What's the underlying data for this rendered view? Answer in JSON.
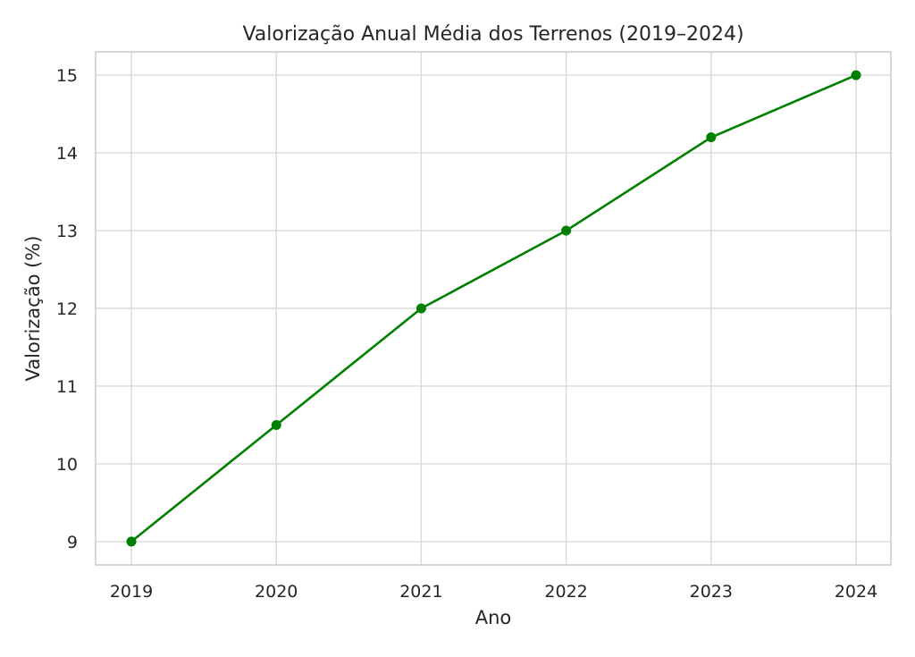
{
  "chart_data": {
    "type": "line",
    "title": "Valorização Anual Média dos Terrenos (2019–2024)",
    "xlabel": "Ano",
    "ylabel": "Valorização (%)",
    "x": [
      "2019",
      "2020",
      "2021",
      "2022",
      "2023",
      "2024"
    ],
    "series": [
      {
        "values": [
          9.0,
          10.5,
          12.0,
          13.0,
          14.2,
          15.0
        ],
        "color": "#008000",
        "marker": "circle"
      }
    ],
    "yticks": [
      9,
      10,
      11,
      12,
      13,
      14,
      15
    ],
    "ylim": [
      8.7,
      15.3
    ],
    "grid": true
  },
  "colors": {
    "grid": "#d9d9d9",
    "frame": "#cccccc",
    "text": "#262626"
  }
}
